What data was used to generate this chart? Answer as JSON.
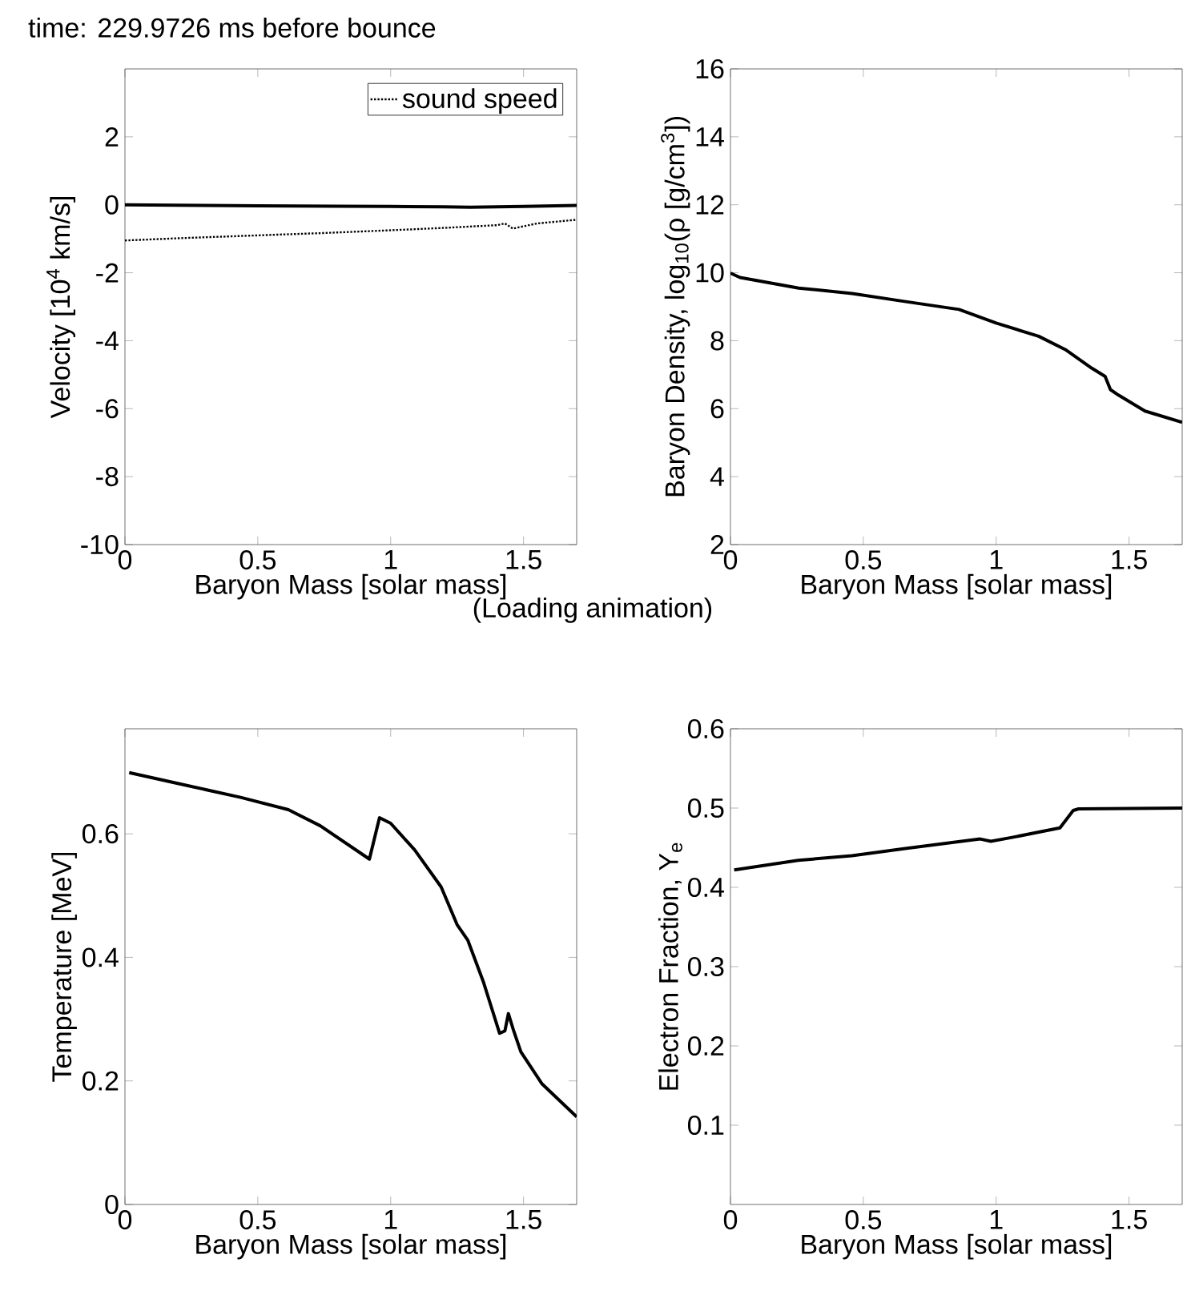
{
  "chart_data": [
    {
      "type": "line",
      "title": "time: 229.9726 ms before bounce",
      "annotations": [
        "(Loading animation)"
      ],
      "xlabel": "Baryon Mass [solar mass]",
      "ylabel": "Velocity [10$^{4}$ km/s]",
      "xlim": [
        0,
        1.7
      ],
      "ylim": [
        -10,
        4
      ],
      "xticks": [
        0,
        0.5,
        1,
        1.5
      ],
      "yticks": [
        -10,
        -8,
        -6,
        -4,
        -2,
        0,
        2
      ],
      "legend": "top right",
      "series": [
        {
          "color": "#000000",
          "line_style": "solid",
          "x": [
            0,
            0.3,
            0.5,
            0.8,
            1.0,
            1.2,
            1.3,
            1.5,
            1.7
          ],
          "values": [
            0,
            -0.02,
            -0.03,
            -0.04,
            -0.05,
            -0.06,
            -0.07,
            -0.05,
            -0.02
          ]
        },
        {
          "name": "sound speed",
          "color": "#000000",
          "line_style": "dotted",
          "x": [
            0,
            0.25,
            0.5,
            0.75,
            1.0,
            1.2,
            1.4,
            1.43,
            1.46,
            1.55,
            1.7
          ],
          "values": [
            -1.05,
            -0.97,
            -0.9,
            -0.83,
            -0.75,
            -0.68,
            -0.6,
            -0.55,
            -0.7,
            -0.55,
            -0.44
          ]
        }
      ]
    },
    {
      "type": "line",
      "xlabel": "Baryon Mass [solar mass]",
      "ylabel": "Baryon Density, log$_{10}$(ρ [g/cm$^{3}$])",
      "xlim": [
        0,
        1.7
      ],
      "ylim": [
        2,
        16
      ],
      "xticks": [
        0,
        0.5,
        1,
        1.5
      ],
      "yticks": [
        2,
        4,
        6,
        8,
        10,
        12,
        14,
        16
      ],
      "series": [
        {
          "color": "#000000",
          "line_style": "solid",
          "x": [
            0,
            0.036,
            0.257,
            0.458,
            0.66,
            0.86,
            1.0,
            1.16,
            1.26,
            1.36,
            1.41,
            1.43,
            1.46,
            1.56,
            1.7
          ],
          "values": [
            9.99,
            9.86,
            9.55,
            9.39,
            9.15,
            8.92,
            8.52,
            8.13,
            7.74,
            7.19,
            6.95,
            6.56,
            6.4,
            5.93,
            5.6
          ]
        }
      ]
    },
    {
      "type": "line",
      "xlabel": "Baryon Mass [solar mass]",
      "ylabel": "Temperature [MeV]",
      "xlim": [
        0,
        1.7
      ],
      "ylim": [
        0,
        0.77
      ],
      "xticks": [
        0,
        0.5,
        1,
        1.5
      ],
      "yticks": [
        0,
        0.2,
        0.4,
        0.6
      ],
      "series": [
        {
          "color": "#000000",
          "line_style": "solid",
          "x": [
            0.016,
            0.236,
            0.435,
            0.615,
            0.735,
            0.92,
            0.958,
            1.0,
            1.09,
            1.19,
            1.25,
            1.29,
            1.35,
            1.41,
            1.43,
            1.443,
            1.463,
            1.49,
            1.57,
            1.7
          ],
          "values": [
            0.699,
            0.678,
            0.659,
            0.639,
            0.613,
            0.559,
            0.626,
            0.617,
            0.574,
            0.514,
            0.453,
            0.428,
            0.359,
            0.277,
            0.281,
            0.309,
            0.281,
            0.247,
            0.195,
            0.142
          ]
        }
      ]
    },
    {
      "type": "line",
      "xlabel": "Baryon Mass [solar mass]",
      "ylabel": "Electron Fraction, Y$_{e}$",
      "xlim": [
        0,
        1.7
      ],
      "ylim": [
        0,
        0.6
      ],
      "xticks": [
        0,
        0.5,
        1,
        1.5
      ],
      "yticks": [
        0.1,
        0.2,
        0.3,
        0.4,
        0.5,
        0.6
      ],
      "series": [
        {
          "color": "#000000",
          "line_style": "solid",
          "x": [
            0.014,
            0.255,
            0.457,
            0.658,
            0.94,
            0.98,
            1.06,
            1.24,
            1.29,
            1.31,
            1.7
          ],
          "values": [
            0.422,
            0.434,
            0.44,
            0.449,
            0.461,
            0.458,
            0.463,
            0.475,
            0.497,
            0.499,
            0.5
          ]
        }
      ]
    }
  ]
}
